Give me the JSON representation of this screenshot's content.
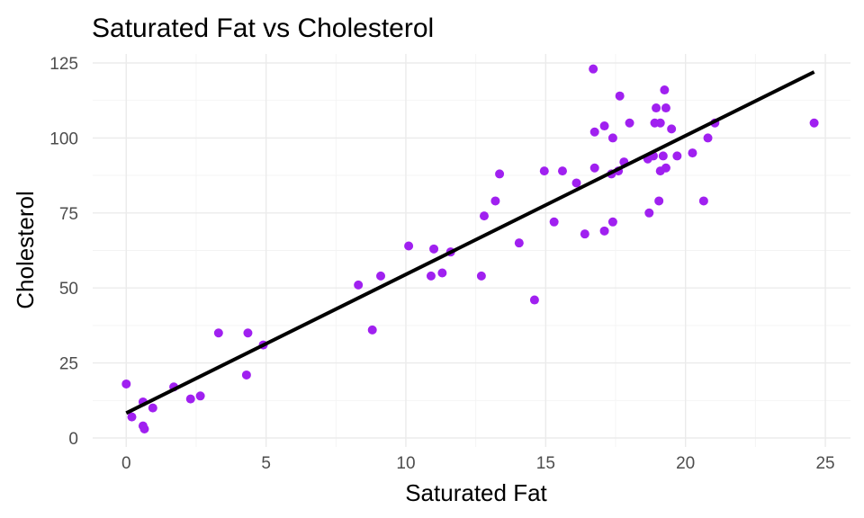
{
  "chart_data": {
    "type": "scatter",
    "title": "Saturated Fat vs Cholesterol",
    "xlabel": "Saturated Fat",
    "ylabel": "Cholesterol",
    "xlim": [
      -1.2,
      25.9
    ],
    "ylim": [
      -3,
      128
    ],
    "x_ticks": [
      0,
      5,
      10,
      15,
      20,
      25
    ],
    "y_ticks": [
      0,
      25,
      50,
      75,
      100,
      125
    ],
    "x_tick_labels": [
      "0",
      "5",
      "10",
      "15",
      "20",
      "25"
    ],
    "y_tick_labels": [
      "0",
      "25",
      "50",
      "75",
      "100",
      "125"
    ],
    "grid": true,
    "point_color": "#a020f0",
    "line_color": "#000000",
    "points": [
      {
        "x": 0.0,
        "y": 18
      },
      {
        "x": 0.2,
        "y": 7
      },
      {
        "x": 0.6,
        "y": 12
      },
      {
        "x": 0.6,
        "y": 4
      },
      {
        "x": 0.65,
        "y": 3
      },
      {
        "x": 0.95,
        "y": 10
      },
      {
        "x": 1.7,
        "y": 17
      },
      {
        "x": 2.3,
        "y": 13
      },
      {
        "x": 2.65,
        "y": 14
      },
      {
        "x": 3.3,
        "y": 35
      },
      {
        "x": 4.35,
        "y": 35
      },
      {
        "x": 4.3,
        "y": 21
      },
      {
        "x": 4.9,
        "y": 31
      },
      {
        "x": 8.3,
        "y": 51
      },
      {
        "x": 8.8,
        "y": 36
      },
      {
        "x": 9.1,
        "y": 54
      },
      {
        "x": 10.1,
        "y": 64
      },
      {
        "x": 10.9,
        "y": 54
      },
      {
        "x": 11.0,
        "y": 63
      },
      {
        "x": 11.3,
        "y": 55
      },
      {
        "x": 11.6,
        "y": 62
      },
      {
        "x": 12.7,
        "y": 54
      },
      {
        "x": 12.8,
        "y": 74
      },
      {
        "x": 13.2,
        "y": 79
      },
      {
        "x": 13.35,
        "y": 88
      },
      {
        "x": 14.05,
        "y": 65
      },
      {
        "x": 14.6,
        "y": 46
      },
      {
        "x": 14.95,
        "y": 89
      },
      {
        "x": 15.3,
        "y": 72
      },
      {
        "x": 15.6,
        "y": 89
      },
      {
        "x": 16.1,
        "y": 85
      },
      {
        "x": 16.4,
        "y": 68
      },
      {
        "x": 16.7,
        "y": 123
      },
      {
        "x": 16.75,
        "y": 102
      },
      {
        "x": 16.75,
        "y": 90
      },
      {
        "x": 17.1,
        "y": 104
      },
      {
        "x": 17.1,
        "y": 69
      },
      {
        "x": 17.4,
        "y": 72
      },
      {
        "x": 17.4,
        "y": 100
      },
      {
        "x": 17.35,
        "y": 88
      },
      {
        "x": 17.6,
        "y": 89
      },
      {
        "x": 17.65,
        "y": 114
      },
      {
        "x": 17.8,
        "y": 92
      },
      {
        "x": 18.0,
        "y": 105
      },
      {
        "x": 18.7,
        "y": 75
      },
      {
        "x": 18.65,
        "y": 93
      },
      {
        "x": 18.85,
        "y": 94
      },
      {
        "x": 18.9,
        "y": 105
      },
      {
        "x": 18.95,
        "y": 110
      },
      {
        "x": 19.05,
        "y": 79
      },
      {
        "x": 19.1,
        "y": 105
      },
      {
        "x": 19.1,
        "y": 89
      },
      {
        "x": 19.2,
        "y": 94
      },
      {
        "x": 19.25,
        "y": 116
      },
      {
        "x": 19.3,
        "y": 110
      },
      {
        "x": 19.3,
        "y": 90
      },
      {
        "x": 19.5,
        "y": 103
      },
      {
        "x": 19.7,
        "y": 94
      },
      {
        "x": 20.25,
        "y": 95
      },
      {
        "x": 20.65,
        "y": 79
      },
      {
        "x": 20.8,
        "y": 100
      },
      {
        "x": 21.05,
        "y": 105
      },
      {
        "x": 24.6,
        "y": 105
      }
    ],
    "trend_line": {
      "x": [
        0,
        24.6
      ],
      "y": [
        8.3,
        122
      ]
    }
  }
}
